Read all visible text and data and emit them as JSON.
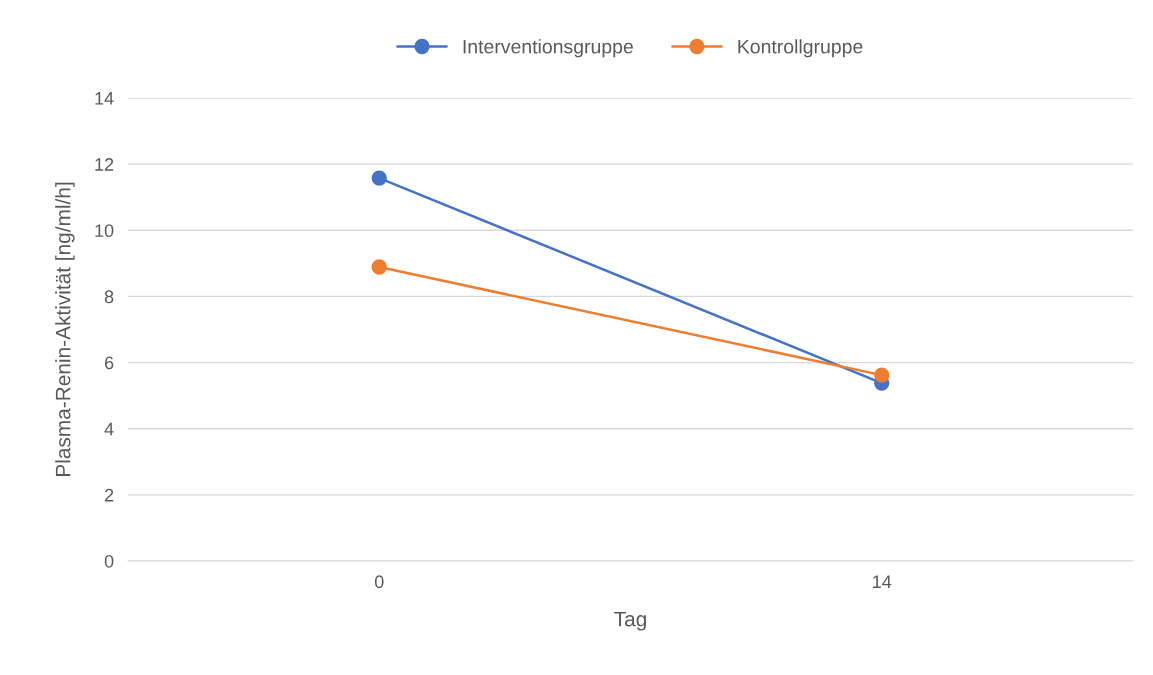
{
  "chart_data": {
    "type": "line",
    "xlabel": "Tag",
    "ylabel": "Plasma-Renin-Aktivität [ng/ml/h]",
    "categories": [
      "0",
      "14"
    ],
    "series": [
      {
        "name": "Interventionsgruppe",
        "color": "#4472c4",
        "values": [
          11.58,
          5.38
        ]
      },
      {
        "name": "Kontrollgruppe",
        "color": "#ed7d31",
        "values": [
          8.89,
          5.62
        ]
      }
    ],
    "ylim": [
      0,
      14
    ],
    "yticks": [
      0,
      2,
      4,
      6,
      8,
      10,
      12,
      14
    ],
    "grid": "y",
    "legend": "top",
    "marker": "circle",
    "line_style": "solid"
  }
}
